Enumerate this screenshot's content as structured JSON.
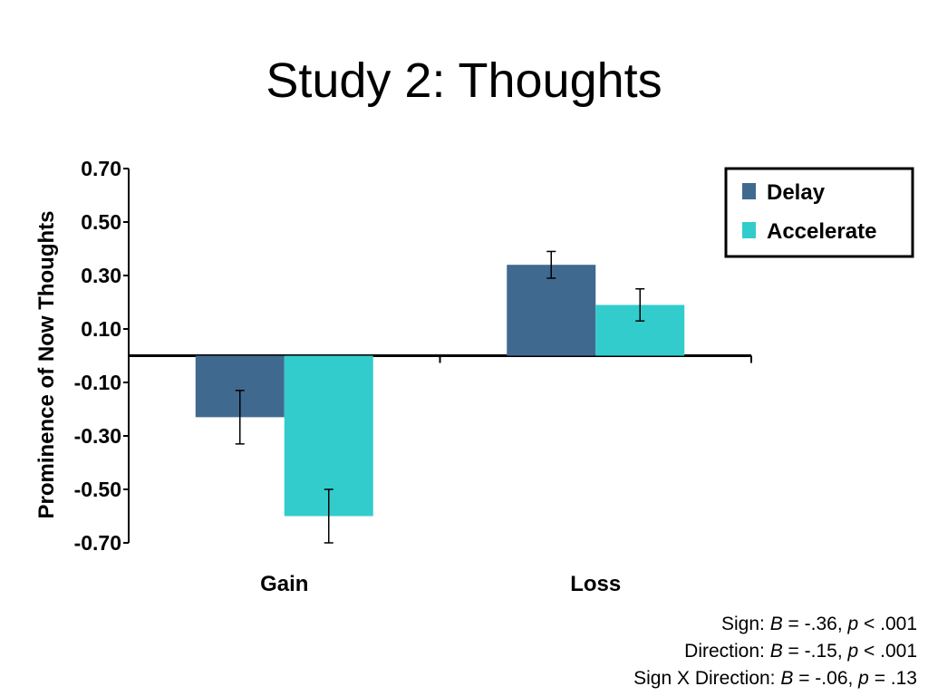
{
  "chart_data": {
    "type": "bar",
    "title": "Study 2: Thoughts",
    "ylabel": "Prominence of Now Thoughts",
    "xlabel": "",
    "categories": [
      "Gain",
      "Loss"
    ],
    "series": [
      {
        "name": "Delay",
        "color": "#406990",
        "values": [
          -0.23,
          0.34
        ],
        "errors": [
          0.1,
          0.05
        ]
      },
      {
        "name": "Accelerate",
        "color": "#33cccc",
        "values": [
          -0.6,
          0.19
        ],
        "errors": [
          0.1,
          0.06
        ]
      }
    ],
    "yticks": [
      "0.70",
      "0.50",
      "0.30",
      "0.10",
      "-0.10",
      "-0.30",
      "-0.50",
      "-0.70"
    ],
    "ylim": [
      -0.7,
      0.7
    ],
    "grid": false,
    "legend_position": "top-right"
  },
  "stats": [
    {
      "prefix": "Sign: ",
      "b_label": "B",
      "b_value": " = -.36, ",
      "p_label": "p",
      "p_value": " < .001"
    },
    {
      "prefix": "Direction: ",
      "b_label": "B",
      "b_value": " = -.15, ",
      "p_label": "p",
      "p_value": " < .001"
    },
    {
      "prefix": "Sign X Direction: ",
      "b_label": "B",
      "b_value": " = -.06, ",
      "p_label": "p",
      "p_value": " = .13"
    }
  ]
}
